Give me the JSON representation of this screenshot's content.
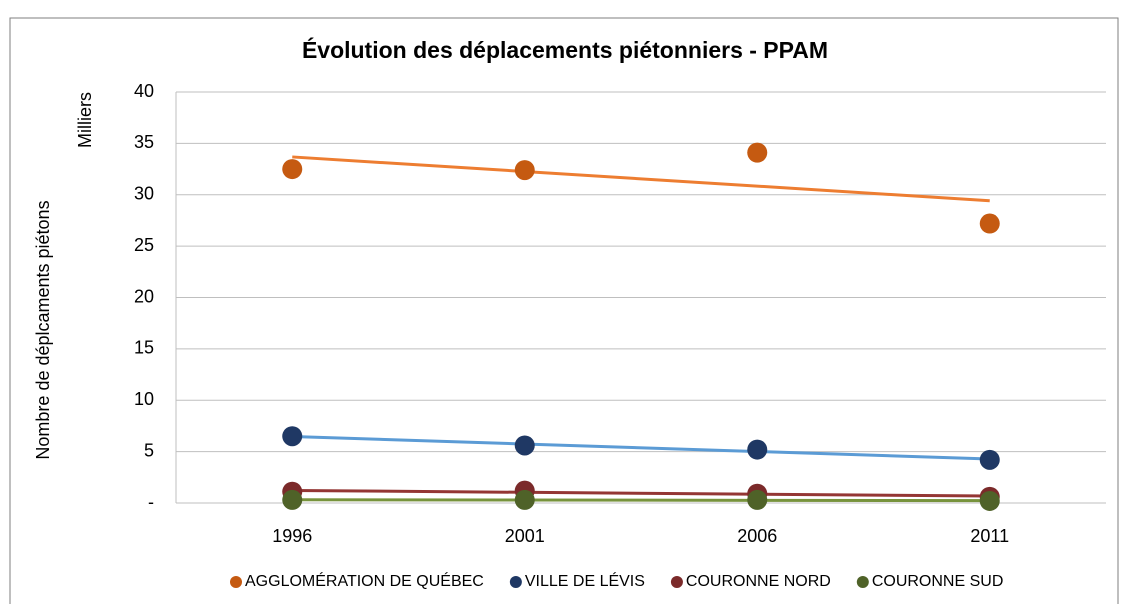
{
  "chart_data": {
    "type": "scatter",
    "title": "Évolution des déplacements piétonniers - PPAM",
    "y_label": "Nombre de déplcaments piétons",
    "y_units": "Milliers",
    "categories": [
      "1996",
      "2001",
      "2006",
      "2011"
    ],
    "series": [
      {
        "name": "AGGLOMÉRATION DE QUÉBEC",
        "color": "#c55a11",
        "trend_color": "#ed7d31",
        "values": [
          32.5,
          32.4,
          34.1,
          27.2
        ]
      },
      {
        "name": "VILLE DE LÉVIS",
        "color": "#1f3864",
        "trend_color": "#5b9bd5",
        "values": [
          6.5,
          5.6,
          5.2,
          4.2
        ]
      },
      {
        "name": "COURONNE NORD",
        "color": "#7b2a2a",
        "trend_color": "#943634",
        "values": [
          1.1,
          1.2,
          0.9,
          0.6
        ]
      },
      {
        "name": "COURONNE SUD",
        "color": "#4f6228",
        "trend_color": "#77933c",
        "values": [
          0.3,
          0.3,
          0.3,
          0.2
        ]
      }
    ],
    "ylim": [
      0,
      40
    ],
    "yticks": [
      {
        "value": 0,
        "label": "-"
      },
      5,
      10,
      15,
      20,
      25,
      30,
      35,
      40
    ],
    "grid": true,
    "trendline": true,
    "legend": "bottom"
  }
}
